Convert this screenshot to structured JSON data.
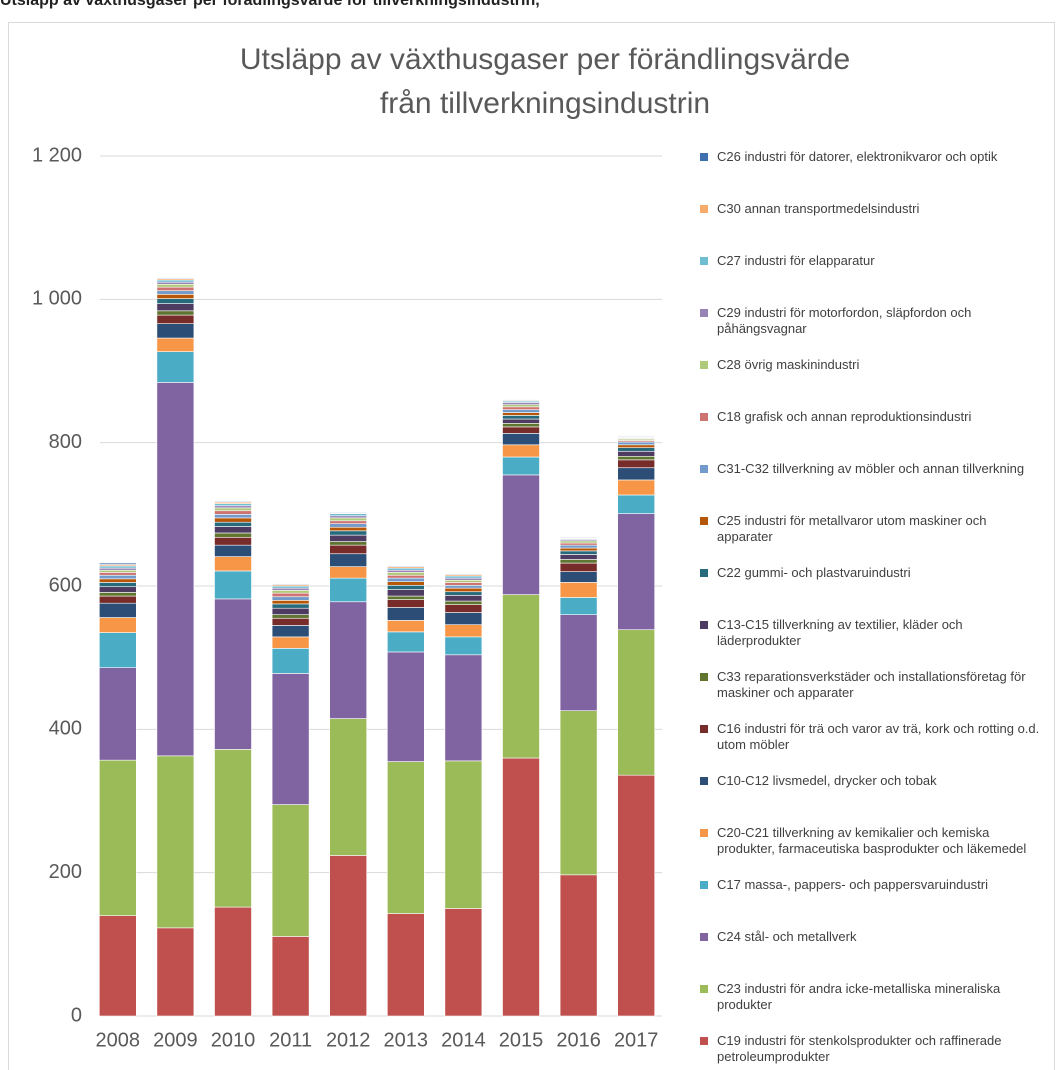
{
  "caption": "Utsläpp av växthusgaser per förädlingsvärde för tillverkningsindustrin,",
  "chart_data": {
    "type": "stacked_bar",
    "title": "Utsläpp av växthusgaser per förändlingsvärde från tillverkningsindustrin",
    "categories": [
      "2008",
      "2009",
      "2010",
      "2011",
      "2012",
      "2013",
      "2014",
      "2015",
      "2016",
      "2017"
    ],
    "ylim": [
      0,
      1200
    ],
    "yticks": [
      0,
      200,
      400,
      600,
      800,
      {
        "value": 1000,
        "label": "1 000"
      },
      {
        "value": 1200,
        "label": "1 200"
      }
    ],
    "grid": true,
    "legend": "right",
    "series": [
      {
        "name": "C19 industri för stenkolsprodukter och raffinerade petroleumprodukter",
        "color": "#c0504d",
        "values": [
          140,
          123,
          152,
          111,
          224,
          143,
          150,
          360,
          197,
          336
        ]
      },
      {
        "name": "C23 industri för andra icke-metalliska mineraliska produkter",
        "color": "#9bbb59",
        "values": [
          217,
          240,
          220,
          184,
          191,
          212,
          206,
          228,
          229,
          203
        ]
      },
      {
        "name": "C24 stål- och metallverk",
        "color": "#8064a2",
        "values": [
          129,
          521,
          210,
          183,
          163,
          153,
          148,
          167,
          134,
          162
        ]
      },
      {
        "name": "C17 massa-, pappers- och pappersvaruindustri",
        "color": "#4bacc6",
        "values": [
          49,
          43,
          39,
          35,
          33,
          28,
          25,
          25,
          24,
          26
        ]
      },
      {
        "name": "C20-C21 tillverkning av kemikalier och kemiska produkter, farmaceutiska basprodukter och läkemedel",
        "color": "#f79646",
        "values": [
          21,
          19,
          20,
          16,
          16,
          16,
          17,
          17,
          21,
          21
        ]
      },
      {
        "name": "C10-C12 livsmedel, drycker och tobak",
        "color": "#2c4d75",
        "values": [
          20,
          20,
          16,
          16,
          18,
          18,
          17,
          16,
          15,
          17
        ]
      },
      {
        "name": "C16 industri för trä och varor av trä, kork och rotting o.d. utom möbler",
        "color": "#772c2a",
        "values": [
          10,
          12,
          11,
          10,
          12,
          11,
          11,
          9,
          12,
          11
        ]
      },
      {
        "name": "C33 reparationsverkstäder och installationsföretag för maskiner och apparater",
        "color": "#5f7530",
        "values": [
          5,
          6,
          6,
          5,
          5,
          5,
          5,
          5,
          5,
          5
        ]
      },
      {
        "name": "C13-C15 tillverkning av textilier, kläder och läderprodukter",
        "color": "#4d3b62",
        "values": [
          8,
          10,
          9,
          9,
          9,
          9,
          8,
          6,
          7,
          7
        ]
      },
      {
        "name": "C22 gummi- och plastvaruindustri",
        "color": "#276a7c",
        "values": [
          6,
          7,
          6,
          6,
          6,
          6,
          5,
          5,
          5,
          5
        ]
      },
      {
        "name": "C25 industri för metallvaror utom maskiner och apparater",
        "color": "#b65708",
        "values": [
          5,
          6,
          6,
          5,
          5,
          5,
          5,
          4,
          4,
          4
        ]
      },
      {
        "name": "C31-C32 tillverkning av möbler och annan tillverkning",
        "color": "#729aca",
        "values": [
          5,
          5,
          5,
          5,
          5,
          5,
          4,
          4,
          4,
          4
        ]
      },
      {
        "name": "C18 grafisk och annan reproduktionsindustri",
        "color": "#cd7371",
        "values": [
          4,
          5,
          5,
          5,
          4,
          4,
          4,
          4,
          3,
          2
        ]
      },
      {
        "name": "C28 övrig maskinindustri",
        "color": "#afc97a",
        "values": [
          3,
          4,
          4,
          4,
          4,
          4,
          3,
          3,
          3,
          2
        ]
      },
      {
        "name": "C29 industri för motorfordon, släpfordon och påhängsvagnar",
        "color": "#9983b5",
        "values": [
          3,
          3,
          3,
          3,
          3,
          3,
          3,
          3,
          2,
          1
        ]
      },
      {
        "name": "C27 industri för elapparatur",
        "color": "#6fbdd1",
        "values": [
          3,
          3,
          3,
          3,
          3,
          3,
          3,
          2,
          1,
          1
        ]
      },
      {
        "name": "C30 annan transportmedelsindustri",
        "color": "#f9ab6b",
        "values": [
          2,
          2,
          2,
          2,
          1,
          2,
          2,
          1,
          1,
          1
        ]
      },
      {
        "name": "C26 industri för datorer, elektronikvaror och optik",
        "color": "#3f6fae",
        "values": [
          2,
          1,
          1,
          1,
          1,
          1,
          1,
          1,
          1,
          1
        ]
      }
    ]
  }
}
